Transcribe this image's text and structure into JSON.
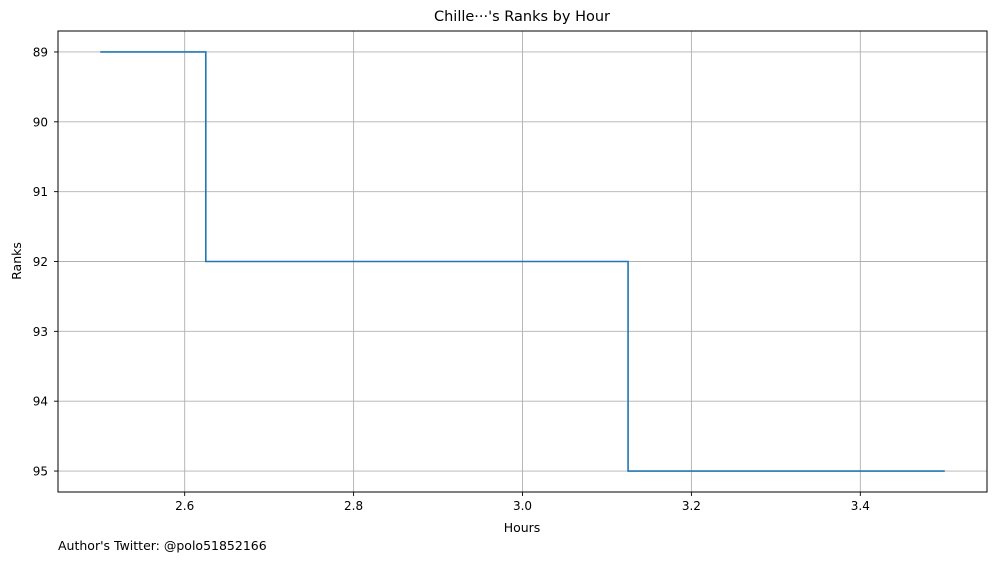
{
  "chart_data": {
    "type": "line",
    "title": "Chille···'s Ranks by Hour",
    "xlabel": "Hours",
    "ylabel": "Ranks",
    "xlim": [
      2.45,
      3.55
    ],
    "ylim": [
      95.3,
      88.7
    ],
    "y_inverted": true,
    "grid": true,
    "drawstyle": "steps-mid",
    "line_color": "#1f77b4",
    "x_ticks": [
      2.6,
      2.8,
      3.0,
      3.2,
      3.4
    ],
    "x_tick_labels": [
      "2.6",
      "2.8",
      "3.0",
      "3.2",
      "3.4"
    ],
    "y_ticks": [
      89,
      90,
      91,
      92,
      93,
      94,
      95
    ],
    "y_tick_labels": [
      "89",
      "90",
      "91",
      "92",
      "93",
      "94",
      "95"
    ],
    "series": [
      {
        "x": [
          2.5,
          2.75,
          3.0,
          3.25,
          3.5
        ],
        "y": [
          89,
          92,
          92,
          95,
          95
        ]
      }
    ]
  },
  "footer": {
    "credit": "Author's Twitter: @polo51852166"
  }
}
